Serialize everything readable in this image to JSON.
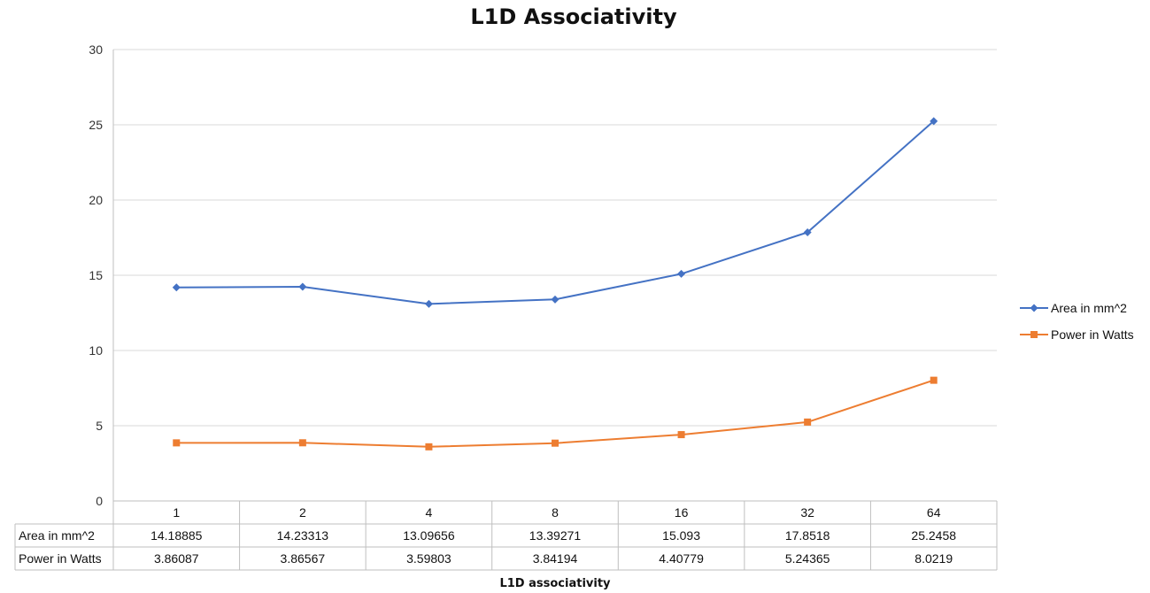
{
  "chart_data": {
    "type": "line",
    "title": "L1D Associativity",
    "xlabel": "L1D associativity",
    "ylabel": "",
    "categories": [
      "1",
      "2",
      "4",
      "8",
      "16",
      "32",
      "64"
    ],
    "ylim": [
      0,
      30
    ],
    "yticks": [
      "0",
      "5",
      "10",
      "15",
      "20",
      "25",
      "30"
    ],
    "grid": true,
    "legend_position": "right",
    "data_table": true,
    "series": [
      {
        "name": "Area in mm^2",
        "color": "#4472C4",
        "marker": "diamond",
        "values": [
          14.18885,
          14.23313,
          13.09656,
          13.39271,
          15.093,
          17.8518,
          25.2458
        ],
        "labels": [
          "14.18885",
          "14.23313",
          "13.09656",
          "13.39271",
          "15.093",
          "17.8518",
          "25.2458"
        ]
      },
      {
        "name": "Power in Watts",
        "color": "#ED7D31",
        "marker": "square",
        "values": [
          3.86087,
          3.86567,
          3.59803,
          3.84194,
          4.40779,
          5.24365,
          8.0219
        ],
        "labels": [
          "3.86087",
          "3.86567",
          "3.59803",
          "3.84194",
          "4.40779",
          "5.24365",
          "8.0219"
        ]
      }
    ]
  }
}
